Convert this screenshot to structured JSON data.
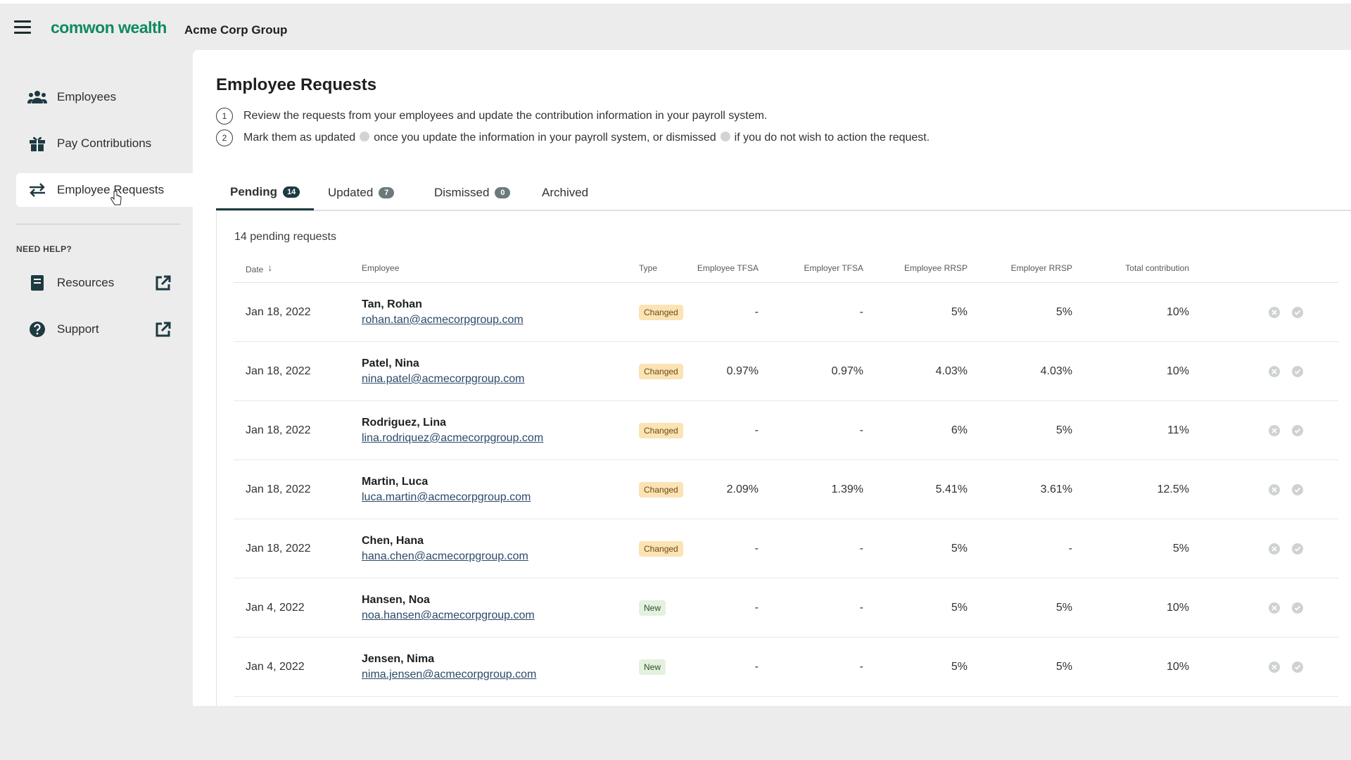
{
  "app": {
    "logo": "comwon wealth",
    "company": "Acme Corp Group"
  },
  "sidebar": {
    "items": [
      {
        "label": "Employees",
        "icon": "users-icon"
      },
      {
        "label": "Pay Contributions",
        "icon": "gift-icon"
      },
      {
        "label": "Employee Requests",
        "icon": "swap-arrows-icon"
      }
    ],
    "help_title": "NEED HELP?",
    "help_items": [
      {
        "label": "Resources",
        "icon": "book-icon"
      },
      {
        "label": "Support",
        "icon": "question-circle-icon"
      }
    ]
  },
  "main": {
    "title": "Employee Requests",
    "steps": {
      "one_num": "1",
      "one_text": "Review the requests from your employees and update the contribution information in your payroll system.",
      "two_num": "2",
      "two_text_a": "Mark them as updated",
      "two_text_b": "once you update the information in your payroll system, or dismissed",
      "two_text_c": "if you do not wish to action the request."
    },
    "tabs": [
      {
        "label": "Pending",
        "count": "14"
      },
      {
        "label": "Updated",
        "count": "7"
      },
      {
        "label": "Dismissed",
        "count": "0"
      },
      {
        "label": "Archived",
        "count": ""
      }
    ],
    "pending_count": "14 pending requests",
    "columns": {
      "date": "Date",
      "employee": "Employee",
      "type": "Type",
      "emp_tfsa": "Employee TFSA",
      "empr_tfsa": "Employer TFSA",
      "emp_rrsp": "Employee RRSP",
      "empr_rrsp": "Employer RRSP",
      "total": "Total contribution"
    },
    "rows": [
      {
        "date": "Jan 18, 2022",
        "name": "Tan, Rohan",
        "email": "rohan.tan@acmecorpgroup.com",
        "type": "Changed",
        "emp_tfsa": "-",
        "empr_tfsa": "-",
        "emp_rrsp": "5%",
        "empr_rrsp": "5%",
        "total": "10%"
      },
      {
        "date": "Jan 18, 2022",
        "name": "Patel, Nina",
        "email": "nina.patel@acmecorpgroup.com",
        "type": "Changed",
        "emp_tfsa": "0.97%",
        "empr_tfsa": "0.97%",
        "emp_rrsp": "4.03%",
        "empr_rrsp": "4.03%",
        "total": "10%"
      },
      {
        "date": "Jan 18, 2022",
        "name": "Rodriguez, Lina",
        "email": "lina.rodriquez@acmecorpgroup.com",
        "type": "Changed",
        "emp_tfsa": "-",
        "empr_tfsa": "-",
        "emp_rrsp": "6%",
        "empr_rrsp": "5%",
        "total": "11%"
      },
      {
        "date": "Jan 18, 2022",
        "name": "Martin, Luca",
        "email": "luca.martin@acmecorpgroup.com",
        "type": "Changed",
        "emp_tfsa": "2.09%",
        "empr_tfsa": "1.39%",
        "emp_rrsp": "5.41%",
        "empr_rrsp": "3.61%",
        "total": "12.5%"
      },
      {
        "date": "Jan 18, 2022",
        "name": "Chen, Hana",
        "email": "hana.chen@acmecorpgroup.com",
        "type": "Changed",
        "emp_tfsa": "-",
        "empr_tfsa": "-",
        "emp_rrsp": "5%",
        "empr_rrsp": "-",
        "total": "5%"
      },
      {
        "date": "Jan 4, 2022",
        "name": "Hansen, Noa",
        "email": "noa.hansen@acmecorpgroup.com",
        "type": "New",
        "emp_tfsa": "-",
        "empr_tfsa": "-",
        "emp_rrsp": "5%",
        "empr_rrsp": "5%",
        "total": "10%"
      },
      {
        "date": "Jan 4, 2022",
        "name": "Jensen, Nima",
        "email": "nima.jensen@acmecorpgroup.com",
        "type": "New",
        "emp_tfsa": "-",
        "empr_tfsa": "-",
        "emp_rrsp": "5%",
        "empr_rrsp": "5%",
        "total": "10%"
      }
    ]
  },
  "colors": {
    "brand": "#0f8a62",
    "nav_dark": "#1d3a40",
    "badge_changed": "#fbe3b4",
    "badge_new": "#e3f1de",
    "link": "#2b4a6b"
  }
}
